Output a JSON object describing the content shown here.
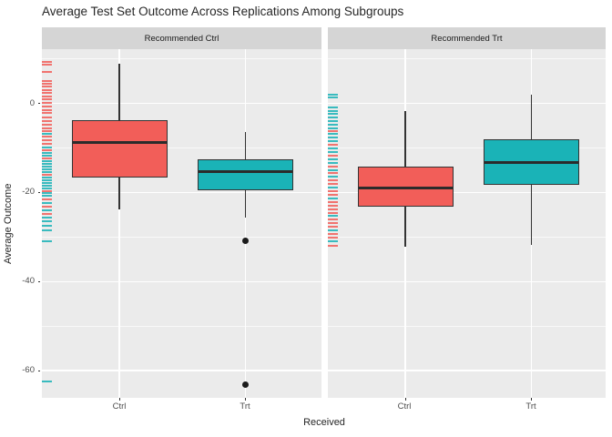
{
  "title": "Average Test Set Outcome Across Replications Among Subgroups",
  "axes": {
    "x_title": "Received",
    "y_title": "Average Outcome",
    "x_categories": [
      "Ctrl",
      "Trt"
    ],
    "y_tick_labels": [
      "0",
      "-20",
      "-40",
      "-60"
    ]
  },
  "colors": {
    "ctrl_fill": "#F25E59",
    "trt_fill": "#1AB3B7",
    "panel_bg": "#EBEBEB",
    "strip_bg": "#D5D5D5",
    "grid": "#FFFFFF",
    "box_border": "#333333",
    "median_line": "#2B2B2B",
    "outlier": "#1A1A1A",
    "tick_text": "#4D4D4D"
  },
  "chart_data": {
    "type": "boxplot",
    "facet_variable_values": [
      "Recommended Ctrl",
      "Recommended Trt"
    ],
    "x_categories": [
      "Ctrl",
      "Trt"
    ],
    "ylim": [
      -66.1,
      12.2
    ],
    "yticks": [
      0,
      -20,
      -40,
      -60
    ],
    "yticks_minor": [
      10,
      -10,
      -30,
      -50
    ],
    "grid": true,
    "facets": [
      {
        "label": "Recommended Ctrl",
        "boxes": [
          {
            "category": "Ctrl",
            "series": "ctrl",
            "whisker_low": -23.7,
            "q1": -16.6,
            "median": -8.7,
            "q3": -3.8,
            "whisker_high": 8.9,
            "outliers": []
          },
          {
            "category": "Trt",
            "series": "trt",
            "whisker_low": -25.6,
            "q1": -19.5,
            "median": -15.3,
            "q3": -12.5,
            "whisker_high": -6.5,
            "outliers": [
              -30.8,
              -63.1
            ]
          }
        ],
        "rug": [
          [
            9.4,
            "r"
          ],
          [
            8.8,
            "r"
          ],
          [
            7.0,
            "r"
          ],
          [
            5.0,
            "r"
          ],
          [
            4.4,
            "r"
          ],
          [
            3.8,
            "r"
          ],
          [
            3.0,
            "r"
          ],
          [
            2.4,
            "r"
          ],
          [
            1.6,
            "r"
          ],
          [
            1.0,
            "r"
          ],
          [
            0.2,
            "r"
          ],
          [
            -0.6,
            "r"
          ],
          [
            -1.4,
            "r"
          ],
          [
            -2.2,
            "r"
          ],
          [
            -3.1,
            "r"
          ],
          [
            -3.9,
            "r"
          ],
          [
            -4.7,
            "r"
          ],
          [
            -5.5,
            "r"
          ],
          [
            -6.3,
            "r"
          ],
          [
            -6.9,
            "t"
          ],
          [
            -7.5,
            "r"
          ],
          [
            -8.3,
            "r"
          ],
          [
            -9.1,
            "r"
          ],
          [
            -9.9,
            "t"
          ],
          [
            -10.5,
            "r"
          ],
          [
            -11.2,
            "t"
          ],
          [
            -11.8,
            "t"
          ],
          [
            -12.4,
            "r"
          ],
          [
            -13.0,
            "t"
          ],
          [
            -13.6,
            "t"
          ],
          [
            -14.2,
            "t"
          ],
          [
            -14.8,
            "t"
          ],
          [
            -15.4,
            "t"
          ],
          [
            -16.0,
            "r"
          ],
          [
            -16.6,
            "t"
          ],
          [
            -17.2,
            "t"
          ],
          [
            -17.8,
            "t"
          ],
          [
            -18.4,
            "t"
          ],
          [
            -19.0,
            "t"
          ],
          [
            -19.6,
            "r"
          ],
          [
            -20.2,
            "t"
          ],
          [
            -20.8,
            "t"
          ],
          [
            -21.6,
            "r"
          ],
          [
            -22.4,
            "t"
          ],
          [
            -23.2,
            "r"
          ],
          [
            -24.0,
            "t"
          ],
          [
            -24.8,
            "r"
          ],
          [
            -25.6,
            "t"
          ],
          [
            -26.4,
            "t"
          ],
          [
            -27.4,
            "t"
          ],
          [
            -28.5,
            "t"
          ],
          [
            -31.0,
            "t"
          ],
          [
            -62.5,
            "t"
          ]
        ]
      },
      {
        "label": "Recommended Trt",
        "boxes": [
          {
            "category": "Ctrl",
            "series": "ctrl",
            "whisker_low": -32.2,
            "q1": -23.2,
            "median": -18.9,
            "q3": -14.1,
            "whisker_high": -1.8,
            "outliers": []
          },
          {
            "category": "Trt",
            "series": "trt",
            "whisker_low": -31.8,
            "q1": -18.2,
            "median": -13.3,
            "q3": -8.0,
            "whisker_high": 2.0,
            "outliers": []
          }
        ],
        "rug": [
          [
            2.0,
            "t"
          ],
          [
            1.3,
            "t"
          ],
          [
            -0.9,
            "t"
          ],
          [
            -1.6,
            "t"
          ],
          [
            -2.4,
            "t"
          ],
          [
            -3.2,
            "t"
          ],
          [
            -4.0,
            "t"
          ],
          [
            -4.8,
            "t"
          ],
          [
            -5.6,
            "t"
          ],
          [
            -6.2,
            "r"
          ],
          [
            -6.9,
            "t"
          ],
          [
            -7.7,
            "t"
          ],
          [
            -8.5,
            "t"
          ],
          [
            -9.3,
            "r"
          ],
          [
            -10.1,
            "t"
          ],
          [
            -10.9,
            "t"
          ],
          [
            -11.7,
            "r"
          ],
          [
            -12.5,
            "t"
          ],
          [
            -13.3,
            "t"
          ],
          [
            -14.1,
            "r"
          ],
          [
            -14.9,
            "t"
          ],
          [
            -15.7,
            "r"
          ],
          [
            -16.5,
            "t"
          ],
          [
            -17.3,
            "r"
          ],
          [
            -18.1,
            "r"
          ],
          [
            -18.9,
            "t"
          ],
          [
            -19.7,
            "r"
          ],
          [
            -20.5,
            "r"
          ],
          [
            -21.3,
            "t"
          ],
          [
            -22.1,
            "r"
          ],
          [
            -22.9,
            "r"
          ],
          [
            -23.7,
            "r"
          ],
          [
            -24.5,
            "r"
          ],
          [
            -25.3,
            "t"
          ],
          [
            -26.1,
            "r"
          ],
          [
            -26.9,
            "r"
          ],
          [
            -27.7,
            "r"
          ],
          [
            -28.5,
            "t"
          ],
          [
            -29.3,
            "r"
          ],
          [
            -30.1,
            "r"
          ],
          [
            -31.0,
            "t"
          ],
          [
            -32.0,
            "r"
          ]
        ]
      }
    ]
  }
}
